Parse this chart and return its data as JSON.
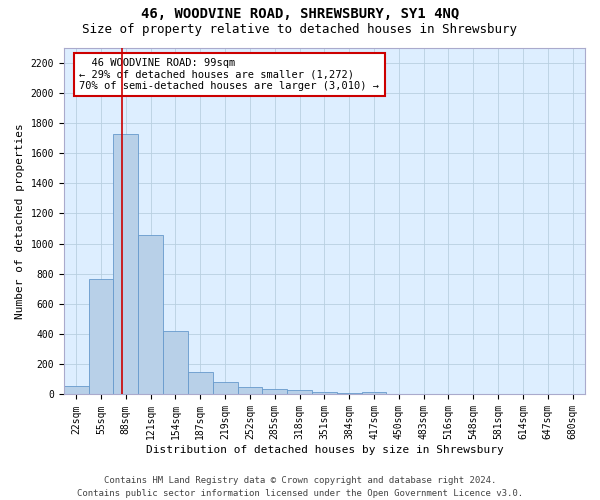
{
  "title1": "46, WOODVINE ROAD, SHREWSBURY, SY1 4NQ",
  "title2": "Size of property relative to detached houses in Shrewsbury",
  "xlabel": "Distribution of detached houses by size in Shrewsbury",
  "ylabel": "Number of detached properties",
  "footer1": "Contains HM Land Registry data © Crown copyright and database right 2024.",
  "footer2": "Contains public sector information licensed under the Open Government Licence v3.0.",
  "annotation_line1": "  46 WOODVINE ROAD: 99sqm  ",
  "annotation_line2": "← 29% of detached houses are smaller (1,272)",
  "annotation_line3": "70% of semi-detached houses are larger (3,010) →",
  "bar_labels": [
    "22sqm",
    "55sqm",
    "88sqm",
    "121sqm",
    "154sqm",
    "187sqm",
    "219sqm",
    "252sqm",
    "285sqm",
    "318sqm",
    "351sqm",
    "384sqm",
    "417sqm",
    "450sqm",
    "483sqm",
    "516sqm",
    "548sqm",
    "581sqm",
    "614sqm",
    "647sqm",
    "680sqm"
  ],
  "bar_values": [
    55,
    765,
    1725,
    1055,
    420,
    150,
    80,
    47,
    35,
    27,
    18,
    12,
    18,
    0,
    0,
    0,
    0,
    0,
    0,
    0,
    0
  ],
  "bar_color": "#b8d0e8",
  "bar_edge_color": "#6699cc",
  "vline_color": "#cc0000",
  "ylim": [
    0,
    2300
  ],
  "yticks": [
    0,
    200,
    400,
    600,
    800,
    1000,
    1200,
    1400,
    1600,
    1800,
    2000,
    2200
  ],
  "bg_color": "#ffffff",
  "plot_bg_color": "#ddeeff",
  "grid_color": "#b8cfe0",
  "annotation_box_color": "#ffffff",
  "annotation_box_edge": "#cc0000",
  "title1_fontsize": 10,
  "title2_fontsize": 9,
  "axis_label_fontsize": 8,
  "tick_fontsize": 7,
  "annotation_fontsize": 7.5,
  "footer_fontsize": 6.5
}
